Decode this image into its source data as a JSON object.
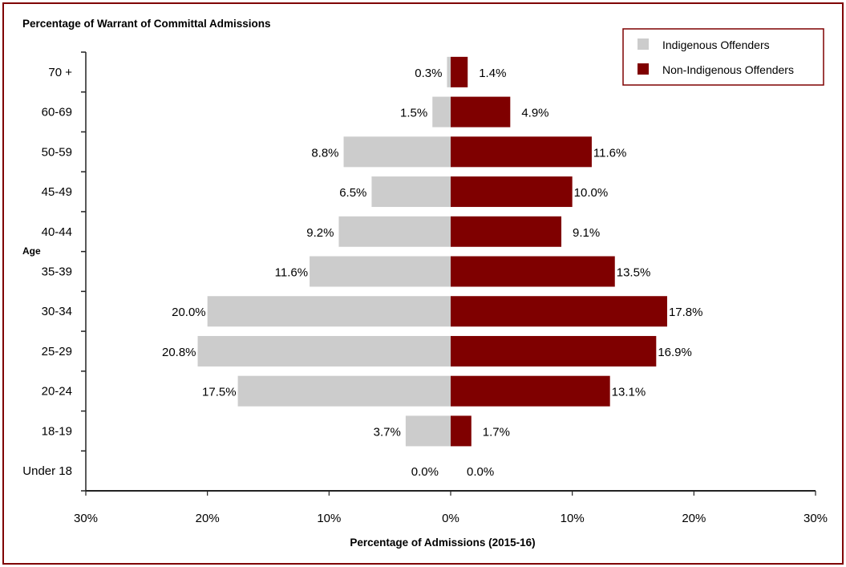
{
  "chart_data": {
    "type": "bar",
    "orientation": "horizontal",
    "layout": "population-pyramid",
    "title": "Percentage of Warrant of Committal Admissions",
    "xlabel": "Percentage of Admissions (2015-16)",
    "ylabel": "Age",
    "xlim": [
      -30,
      30
    ],
    "xticks": [
      "30%",
      "20%",
      "10%",
      "0%",
      "10%",
      "20%",
      "30%"
    ],
    "grid": false,
    "legend_position": "top-right",
    "categories": [
      "70 +",
      "60-69",
      "50-59",
      "45-49",
      "40-44",
      "35-39",
      "30-34",
      "25-29",
      "20-24",
      "18-19",
      "Under 18"
    ],
    "series": [
      {
        "name": "Indigenous Offenders",
        "side": "left",
        "color": "#cccccc",
        "values": [
          0.3,
          1.5,
          8.8,
          6.5,
          9.2,
          11.6,
          20.0,
          20.8,
          17.5,
          3.7,
          0.0
        ],
        "labels": [
          "0.3%",
          "1.5%",
          "8.8%",
          "6.5%",
          "9.2%",
          "11.6%",
          "20.0%",
          "20.8%",
          "17.5%",
          "3.7%",
          "0.0%"
        ]
      },
      {
        "name": "Non-Indigenous Offenders",
        "side": "right",
        "color": "#7f0000",
        "values": [
          1.4,
          4.9,
          11.6,
          10.0,
          9.1,
          13.5,
          17.8,
          16.9,
          13.1,
          1.7,
          0.0
        ],
        "labels": [
          "1.4%",
          "4.9%",
          "11.6%",
          "10.0%",
          "9.1%",
          "13.5%",
          "17.8%",
          "16.9%",
          "13.1%",
          "1.7%",
          "0.0%"
        ]
      }
    ]
  }
}
